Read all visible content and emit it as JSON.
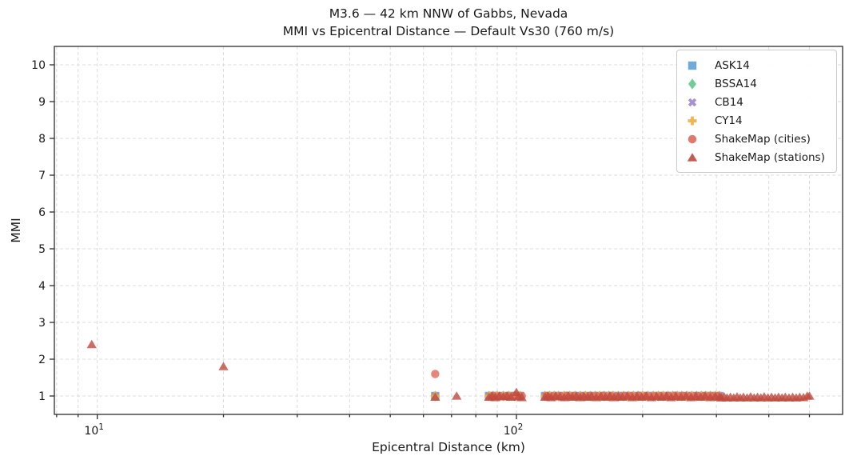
{
  "title": {
    "line1": "M3.6 — 42 km NNW of Gabbs, Nevada",
    "line2": "MMI vs Epicentral Distance — Default Vs30 (760 m/s)"
  },
  "axes": {
    "xlabel": "Epicentral Distance (km)",
    "ylabel": "MMI",
    "x_scale": "log",
    "xlim": [
      7.9,
      600
    ],
    "ylim": [
      0.5,
      10.5
    ],
    "y_ticks": [
      1,
      2,
      3,
      4,
      5,
      6,
      7,
      8,
      9,
      10
    ],
    "x_major_ticks": [
      {
        "value": 10,
        "label_base": "10",
        "label_exp": "1"
      },
      {
        "value": 100,
        "label_base": "10",
        "label_exp": "2"
      }
    ],
    "x_minor_ticks": [
      8,
      9,
      20,
      30,
      40,
      50,
      60,
      70,
      80,
      90,
      200,
      300,
      400,
      500
    ],
    "grid": true
  },
  "style": {
    "background": "#ffffff",
    "grid_color": "#dcdcdc",
    "spine_color": "#2e2e2e",
    "text_color": "#1a1a1a",
    "marker_alpha": 0.8
  },
  "legend": {
    "position": "upper right",
    "entries": [
      {
        "label": "ASK14",
        "marker": "square",
        "color": "#5fa1d8"
      },
      {
        "label": "BSSA14",
        "marker": "diamond",
        "color": "#5ec98b"
      },
      {
        "label": "CB14",
        "marker": "x",
        "color": "#9c86cc"
      },
      {
        "label": "CY14",
        "marker": "plus",
        "color": "#f2ab3d"
      },
      {
        "label": "ShakeMap (cities)",
        "marker": "circle",
        "color": "#e2685a"
      },
      {
        "label": "ShakeMap (stations)",
        "marker": "triangle",
        "color": "#bf4a3e"
      }
    ]
  },
  "chart_data": {
    "type": "scatter",
    "title": "M3.6 — 42 km NNW of Gabbs, Nevada / MMI vs Epicentral Distance — Default Vs30 (760 m/s)",
    "xlabel": "Epicentral Distance (km)",
    "ylabel": "MMI",
    "x_scale": "log",
    "xlim": [
      7.9,
      600
    ],
    "ylim": [
      0.5,
      10.5
    ],
    "legend_position": "upper right",
    "grid": true,
    "gmpe_distances": [
      64,
      86,
      88,
      90,
      93,
      96,
      99,
      102,
      117,
      120,
      123,
      126,
      130,
      134,
      138,
      142,
      146,
      150,
      154,
      158,
      162,
      166,
      170,
      175,
      180,
      185,
      190,
      195,
      200,
      206,
      212,
      218,
      224,
      230,
      236,
      242,
      248,
      255,
      262,
      269,
      276,
      283,
      290,
      298,
      305
    ],
    "series": [
      {
        "name": "ASK14",
        "marker": "square",
        "color": "#5fa1d8",
        "x_ref": "gmpe_distances",
        "y_value": 1.0
      },
      {
        "name": "BSSA14",
        "marker": "diamond",
        "color": "#5ec98b",
        "x_ref": "gmpe_distances",
        "y_value": 1.0
      },
      {
        "name": "CB14",
        "marker": "x",
        "color": "#9c86cc",
        "x_ref": "gmpe_distances",
        "y_value": 1.0
      },
      {
        "name": "CY14",
        "marker": "plus",
        "color": "#f2ab3d",
        "x_ref": "gmpe_distances",
        "y_value": 1.0
      },
      {
        "name": "ShakeMap (cities)",
        "marker": "circle",
        "color": "#e2685a",
        "points": [
          [
            64,
            1.6
          ],
          [
            88,
            1.0
          ],
          [
            91,
            0.99
          ],
          [
            95,
            1.0
          ],
          [
            99,
            1.01
          ],
          [
            103,
            1.0
          ],
          [
            118,
            1.0
          ],
          [
            122,
            0.99
          ],
          [
            127,
            1.0
          ],
          [
            132,
            1.01
          ],
          [
            137,
            1.0
          ],
          [
            143,
            0.99
          ],
          [
            149,
            1.0
          ],
          [
            155,
            1.0
          ],
          [
            161,
            1.01
          ],
          [
            168,
            1.0
          ],
          [
            174,
            0.99
          ],
          [
            181,
            1.0
          ],
          [
            188,
            1.0
          ],
          [
            196,
            1.01
          ],
          [
            204,
            1.0
          ],
          [
            212,
            0.99
          ],
          [
            221,
            1.0
          ],
          [
            230,
            1.0
          ],
          [
            239,
            1.01
          ],
          [
            249,
            1.0
          ],
          [
            259,
            0.99
          ],
          [
            269,
            1.0
          ],
          [
            280,
            1.0
          ],
          [
            291,
            1.0
          ],
          [
            303,
            1.0
          ]
        ]
      },
      {
        "name": "ShakeMap (stations)",
        "marker": "triangle",
        "color": "#bf4a3e",
        "points": [
          [
            9.7,
            2.4
          ],
          [
            20,
            1.8
          ],
          [
            64,
            0.97
          ],
          [
            72,
            1.0
          ],
          [
            86,
            0.97
          ],
          [
            87.5,
            1.0
          ],
          [
            89,
            0.96
          ],
          [
            91,
            1.0
          ],
          [
            93,
            0.98
          ],
          [
            95,
            1.0
          ],
          [
            97,
            0.97
          ],
          [
            100,
            1.1
          ],
          [
            101,
            0.98
          ],
          [
            103,
            0.96
          ],
          [
            117,
            0.97
          ],
          [
            119,
            1.0
          ],
          [
            121,
            0.96
          ],
          [
            124,
            1.0
          ],
          [
            127,
            0.98
          ],
          [
            130,
            0.96
          ],
          [
            133,
            1.0
          ],
          [
            136,
            0.97
          ],
          [
            139,
            1.0
          ],
          [
            142,
            0.96
          ],
          [
            145,
            0.99
          ],
          [
            148,
            0.97
          ],
          [
            151,
            1.0
          ],
          [
            155,
            0.96
          ],
          [
            159,
            0.99
          ],
          [
            163,
            0.97
          ],
          [
            167,
            1.0
          ],
          [
            171,
            0.96
          ],
          [
            175,
            0.99
          ],
          [
            179,
            0.97
          ],
          [
            184,
            1.0
          ],
          [
            189,
            0.96
          ],
          [
            194,
            0.99
          ],
          [
            199,
            0.97
          ],
          [
            204,
            1.0
          ],
          [
            210,
            0.96
          ],
          [
            216,
            0.99
          ],
          [
            222,
            0.97
          ],
          [
            228,
            1.0
          ],
          [
            234,
            0.96
          ],
          [
            240,
            0.99
          ],
          [
            247,
            0.97
          ],
          [
            254,
            1.0
          ],
          [
            261,
            0.96
          ],
          [
            268,
            0.99
          ],
          [
            275,
            0.97
          ],
          [
            282,
            1.0
          ],
          [
            290,
            0.96
          ],
          [
            298,
            0.99
          ],
          [
            305,
            0.97
          ],
          [
            308,
            0.95
          ],
          [
            313,
            0.98
          ],
          [
            318,
            0.95
          ],
          [
            324,
            0.97
          ],
          [
            330,
            0.95
          ],
          [
            336,
            0.98
          ],
          [
            342,
            0.95
          ],
          [
            348,
            0.97
          ],
          [
            355,
            0.95
          ],
          [
            362,
            0.98
          ],
          [
            369,
            0.95
          ],
          [
            376,
            0.97
          ],
          [
            383,
            0.95
          ],
          [
            390,
            0.98
          ],
          [
            398,
            0.95
          ],
          [
            406,
            0.97
          ],
          [
            414,
            0.95
          ],
          [
            422,
            0.97
          ],
          [
            430,
            0.95
          ],
          [
            438,
            0.97
          ],
          [
            447,
            0.95
          ],
          [
            456,
            0.97
          ],
          [
            465,
            0.95
          ],
          [
            474,
            0.97
          ],
          [
            484,
            0.96
          ],
          [
            494,
            1.0
          ],
          [
            500,
            1.0
          ]
        ]
      }
    ]
  }
}
